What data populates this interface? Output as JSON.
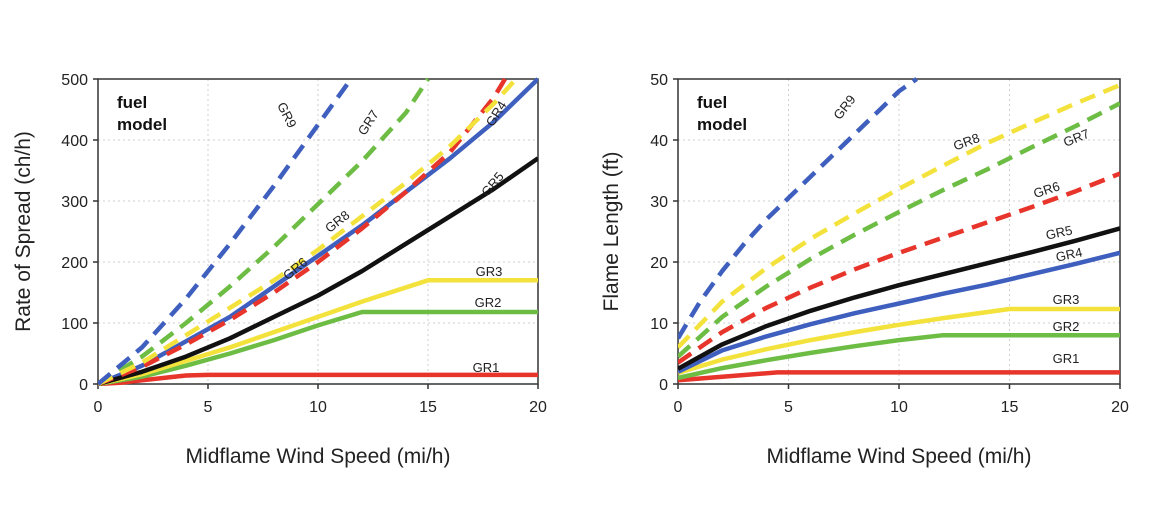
{
  "chart_data": [
    {
      "type": "line",
      "xlabel": "Midflame Wind Speed (mi/h)",
      "ylabel": "Rate of Spread (ch/h)",
      "xlim": [
        0,
        20
      ],
      "ylim": [
        0,
        500
      ],
      "xticks": [
        "0",
        "5",
        "10",
        "15",
        "20"
      ],
      "yticks": [
        "0",
        "100",
        "200",
        "300",
        "400",
        "500"
      ],
      "annotation": [
        "fuel",
        "model"
      ],
      "grid": true,
      "series": [
        {
          "name": "GR1",
          "color": "#e8352b",
          "dashed": false,
          "x": [
            0,
            1,
            2,
            3,
            4,
            5,
            20
          ],
          "y": [
            0,
            2,
            6,
            10,
            14,
            15,
            15
          ]
        },
        {
          "name": "GR2",
          "color": "#6dbd45",
          "dashed": false,
          "x": [
            0,
            2,
            4,
            6,
            8,
            10,
            12,
            20
          ],
          "y": [
            0,
            12,
            30,
            50,
            72,
            96,
            118,
            118
          ]
        },
        {
          "name": "GR3",
          "color": "#f4e23c",
          "dashed": false,
          "x": [
            0,
            2,
            4,
            6,
            8,
            10,
            12,
            15,
            20
          ],
          "y": [
            0,
            16,
            38,
            60,
            85,
            110,
            135,
            170,
            170
          ]
        },
        {
          "name": "GR4",
          "color": "#3f5fbf",
          "dashed": false,
          "x": [
            0,
            2,
            4,
            6,
            8,
            10,
            12,
            14,
            16,
            18,
            20
          ],
          "y": [
            0,
            30,
            70,
            110,
            160,
            210,
            260,
            315,
            370,
            430,
            500
          ]
        },
        {
          "name": "GR5",
          "color": "#111111",
          "dashed": false,
          "x": [
            0,
            2,
            4,
            6,
            8,
            10,
            12,
            14,
            16,
            18,
            20
          ],
          "y": [
            0,
            20,
            45,
            75,
            110,
            145,
            185,
            230,
            275,
            320,
            370
          ]
        },
        {
          "name": "GR6",
          "color": "#e8352b",
          "dashed": true,
          "x": [
            0,
            2,
            4,
            6,
            8,
            10,
            12,
            14,
            16,
            18,
            18.5
          ],
          "y": [
            0,
            28,
            65,
            105,
            150,
            200,
            255,
            315,
            380,
            470,
            500
          ]
        },
        {
          "name": "GR7",
          "color": "#6dbd45",
          "dashed": true,
          "x": [
            0,
            2,
            4,
            6,
            8,
            10,
            12,
            14,
            15
          ],
          "y": [
            0,
            45,
            100,
            160,
            225,
            295,
            365,
            445,
            500
          ]
        },
        {
          "name": "GR8",
          "color": "#f4e23c",
          "dashed": true,
          "x": [
            0,
            2,
            4,
            6,
            8,
            10,
            12,
            14,
            16,
            18,
            19
          ],
          "y": [
            0,
            35,
            80,
            125,
            170,
            220,
            275,
            330,
            390,
            460,
            500
          ]
        },
        {
          "name": "GR9",
          "color": "#3f5fbf",
          "dashed": true,
          "x": [
            0,
            2,
            4,
            6,
            8,
            10,
            11.5
          ],
          "y": [
            0,
            60,
            140,
            230,
            325,
            425,
            500
          ]
        }
      ]
    },
    {
      "type": "line",
      "xlabel": "Midflame Wind Speed (mi/h)",
      "ylabel": "Flame Length (ft)",
      "xlim": [
        0,
        20
      ],
      "ylim": [
        0,
        50
      ],
      "xticks": [
        "0",
        "5",
        "10",
        "15",
        "20"
      ],
      "yticks": [
        "0",
        "10",
        "20",
        "30",
        "40",
        "50"
      ],
      "annotation": [
        "fuel",
        "model"
      ],
      "grid": true,
      "series": [
        {
          "name": "GR1",
          "color": "#e8352b",
          "dashed": false,
          "x": [
            0,
            2,
            4.5,
            20
          ],
          "y": [
            0.6,
            1.2,
            1.9,
            1.9
          ]
        },
        {
          "name": "GR2",
          "color": "#6dbd45",
          "dashed": false,
          "x": [
            0,
            2,
            4,
            6,
            8,
            10,
            12,
            20
          ],
          "y": [
            1,
            2.6,
            3.9,
            5.1,
            6.2,
            7.2,
            8,
            8
          ]
        },
        {
          "name": "GR3",
          "color": "#f4e23c",
          "dashed": false,
          "x": [
            0,
            2,
            4,
            6,
            8,
            10,
            12,
            15,
            20
          ],
          "y": [
            1.8,
            4,
            5.7,
            7.2,
            8.5,
            9.7,
            10.8,
            12.3,
            12.3
          ]
        },
        {
          "name": "GR4",
          "color": "#3f5fbf",
          "dashed": false,
          "x": [
            0,
            2,
            4,
            6,
            8,
            10,
            12,
            14,
            16,
            18,
            20
          ],
          "y": [
            2,
            5.5,
            7.8,
            9.8,
            11.6,
            13.2,
            14.8,
            16.3,
            18,
            19.7,
            21.5
          ]
        },
        {
          "name": "GR5",
          "color": "#111111",
          "dashed": false,
          "x": [
            0,
            2,
            4,
            6,
            8,
            10,
            12,
            14,
            16,
            18,
            20
          ],
          "y": [
            2.5,
            6.5,
            9.5,
            12,
            14.2,
            16.2,
            18,
            19.8,
            21.6,
            23.5,
            25.5
          ]
        },
        {
          "name": "GR6",
          "color": "#e8352b",
          "dashed": true,
          "x": [
            0,
            2,
            4,
            6,
            8,
            10,
            12,
            14,
            16,
            18,
            20
          ],
          "y": [
            3.5,
            8.5,
            12.5,
            15.8,
            18.8,
            21.5,
            24,
            26.5,
            29,
            31.6,
            34.5
          ]
        },
        {
          "name": "GR7",
          "color": "#6dbd45",
          "dashed": true,
          "x": [
            0,
            2,
            4,
            6,
            8,
            10,
            12,
            14,
            16,
            18,
            20
          ],
          "y": [
            4.5,
            11,
            16,
            20.5,
            24.5,
            28.2,
            31.8,
            35.2,
            38.8,
            42.3,
            46
          ]
        },
        {
          "name": "GR8",
          "color": "#f4e23c",
          "dashed": true,
          "x": [
            0,
            2,
            4,
            6,
            8,
            10,
            12,
            14,
            16,
            18,
            20
          ],
          "y": [
            6,
            13.5,
            19,
            23.8,
            28,
            32,
            35.8,
            39.5,
            42.8,
            46,
            49
          ]
        },
        {
          "name": "GR9",
          "color": "#3f5fbf",
          "dashed": true,
          "x": [
            0,
            1,
            2,
            3,
            4,
            5,
            6,
            7,
            8,
            9,
            10,
            10.8
          ],
          "y": [
            7.5,
            13.5,
            18.5,
            23,
            27,
            30.5,
            34,
            37.5,
            41,
            44.5,
            48,
            50
          ]
        }
      ]
    }
  ]
}
